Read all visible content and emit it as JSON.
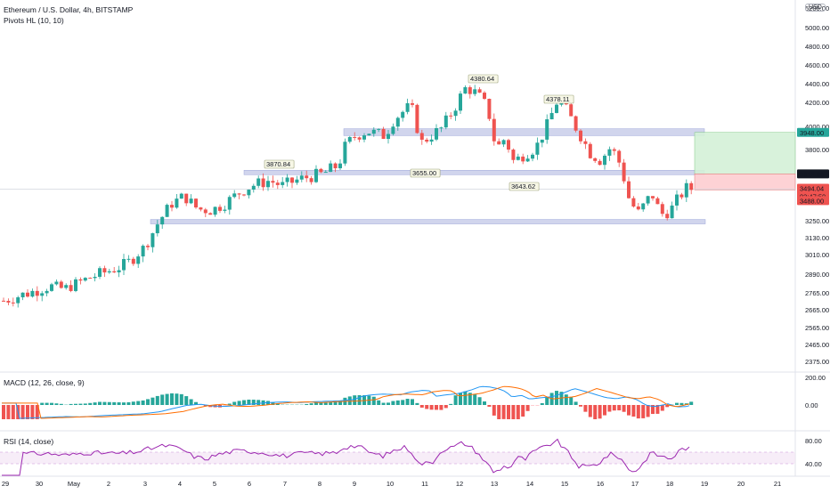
{
  "header": {
    "symbol_line": "Ethereum / U.S. Dollar, 4h, BITSTAMP",
    "indicator_line": "Pivots HL (10, 10)",
    "currency_badge": "USD"
  },
  "price_axis": {
    "ticks": [
      "5200.00",
      "5000.00",
      "4800.00",
      "4600.00",
      "4400.00",
      "4200.00",
      "4000.00",
      "3800.00",
      "3250.00",
      "3130.00",
      "3010.00",
      "2890.00",
      "2765.00",
      "2665.00",
      "2565.00",
      "2465.00",
      "2375.00"
    ],
    "labels": {
      "target": "3948.00",
      "entry": "3612.00",
      "last_price": "3494.04",
      "countdown": "03:47:50",
      "stop": "3488.00"
    }
  },
  "pivot_labels": [
    "3870.84",
    "4380.64",
    "4378.11",
    "3655.00",
    "3643.62"
  ],
  "macd": {
    "label": "MACD (12, 26, close, 9)",
    "ticks": [
      "200.00",
      "0.00"
    ]
  },
  "rsi": {
    "label": "RSI (14, close)",
    "ticks": [
      "80.00",
      "40.00"
    ]
  },
  "date_axis": [
    "29",
    "30",
    "May",
    "2",
    "3",
    "4",
    "5",
    "6",
    "7",
    "8",
    "9",
    "10",
    "11",
    "12",
    "13",
    "14",
    "15",
    "16",
    "17",
    "18",
    "19",
    "20",
    "21"
  ],
  "colors": {
    "up": "#26a69a",
    "down": "#ef5350",
    "zone": "#c5cae9",
    "target_fill": "#d4f1d7",
    "stop_fill": "#fdcdd0",
    "macd_line": "#2196f3",
    "signal_line": "#ff6d00",
    "rsi_line": "#9c27b0",
    "rsi_band": "#f3e5f5"
  },
  "chart_data": {
    "type": "candlestick",
    "x": [
      "29",
      "30",
      "May",
      "2",
      "3",
      "4",
      "5",
      "6",
      "7",
      "8",
      "9",
      "10",
      "11",
      "12",
      "13",
      "14",
      "15",
      "16",
      "17",
      "18"
    ],
    "close": [
      2720,
      2760,
      2800,
      2900,
      3020,
      3350,
      3480,
      3560,
      3640,
      3760,
      3960,
      4040,
      3910,
      4330,
      3900,
      3780,
      4160,
      3880,
      3380,
      3494
    ],
    "resistance_zones": [
      [
        3920,
        3980
      ],
      [
        3610,
        3640
      ],
      [
        3230,
        3260
      ]
    ],
    "pivot_highs": [
      3870.84,
      4380.64,
      4378.11
    ],
    "pivot_lows": [
      3655.0,
      3643.62
    ],
    "position": {
      "target": 3948.0,
      "entry": 3612.0,
      "stop": 3488.0
    },
    "last_price": 3494.04
  }
}
